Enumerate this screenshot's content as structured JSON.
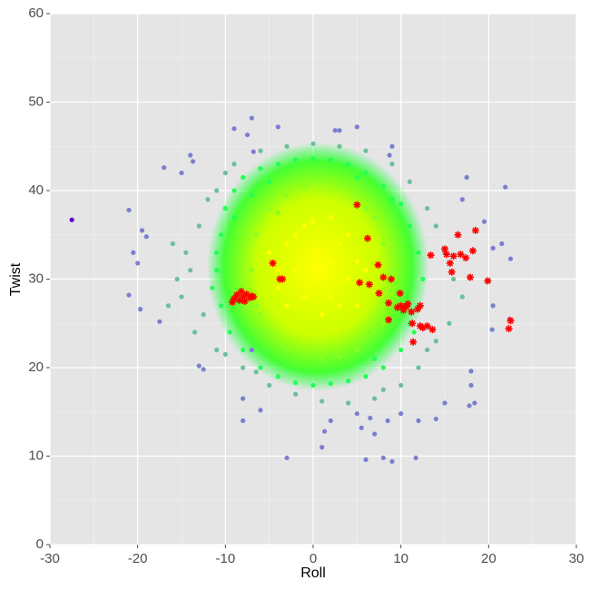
{
  "chart_data": {
    "type": "scatter",
    "x_label": "Roll",
    "y_label": "Twist",
    "xlim": [
      -30,
      30
    ],
    "xticks": [
      -30,
      -20,
      -10,
      0,
      10,
      20,
      30
    ],
    "ylim": [
      0,
      60
    ],
    "yticks": [
      0,
      10,
      20,
      30,
      40,
      50,
      60
    ],
    "grid": true,
    "series": [
      {
        "color": "#7b7fd0",
        "marker": "circle",
        "x": [
          -21,
          -20.5,
          -20,
          -19.5,
          -19,
          -21,
          -19.7,
          -17.5,
          -17,
          -15,
          -14,
          -13.7,
          -13,
          -12.5,
          -8,
          -8,
          -7,
          -6,
          -4,
          -3,
          -7.5,
          -9,
          -7,
          -6.8,
          3,
          2.5,
          5,
          9,
          8.7,
          2,
          5,
          6.5,
          7,
          1,
          1.3,
          5.5,
          6,
          8,
          9,
          11.7,
          8.5,
          10,
          12,
          14,
          15,
          18,
          17.8,
          18.4,
          18,
          21.9,
          22.5,
          20.5,
          21.5,
          20.5,
          20.4,
          22.4,
          17.5,
          17,
          19.5
        ],
        "values": [
          37.8,
          33,
          31.8,
          35.5,
          34.8,
          28.2,
          26.6,
          25.2,
          42.6,
          42,
          44,
          43.3,
          20.2,
          19.8,
          16.5,
          14,
          22,
          15.2,
          47.2,
          9.8,
          46.3,
          47,
          48.2,
          44.4,
          46.8,
          46.8,
          47.2,
          45,
          44,
          14,
          14.8,
          14.3,
          12.5,
          11,
          12.8,
          13.2,
          9.6,
          9.8,
          9.4,
          9.8,
          14,
          14.8,
          14,
          14.2,
          16,
          18,
          15.7,
          16,
          19.6,
          40.4,
          32.3,
          33.5,
          34,
          27,
          24.3,
          25.5,
          41.5,
          39,
          36.5
        ]
      },
      {
        "color": "#5a00c8",
        "marker": "circle",
        "x": [
          -27.5
        ],
        "values": [
          36.7
        ]
      },
      {
        "color": "#6dbf9a",
        "marker": "circle",
        "x": [
          -14,
          -13,
          -12,
          -15,
          -14.5,
          -13.5,
          -11,
          -10,
          -9,
          -6,
          -3,
          0,
          3,
          6,
          9,
          11,
          13,
          14,
          15,
          16,
          17,
          15.5,
          14,
          12,
          10,
          7,
          4,
          1,
          -2,
          -5,
          -8,
          -11,
          -12.5,
          -15.5,
          -16,
          -16.5,
          -10,
          -6.5,
          8,
          13
        ],
        "values": [
          31,
          36,
          39,
          28,
          33,
          24,
          40,
          42,
          43,
          44.5,
          45,
          45.3,
          45,
          44.5,
          43,
          41,
          38,
          36,
          33,
          30,
          28,
          25,
          23,
          20,
          18,
          16.5,
          16,
          16.2,
          17,
          18,
          20,
          22,
          26,
          30,
          34,
          27,
          21.5,
          19.5,
          17.5,
          22
        ]
      },
      {
        "color": "#22ff55",
        "marker": "circle",
        "x": [
          -11,
          -10.5,
          -10,
          -9,
          -8,
          -6,
          -4,
          -2,
          0,
          2,
          4,
          6,
          8,
          10,
          11,
          12,
          12.5,
          12,
          11.5,
          10,
          8,
          6,
          4,
          2,
          0,
          -2,
          -4,
          -6,
          -8,
          -9.5,
          -10.5,
          -11.5,
          -11,
          -7,
          -5,
          5,
          9,
          11,
          -9,
          7
        ],
        "values": [
          31,
          35,
          38,
          40,
          41.5,
          42.5,
          43,
          43.5,
          43.6,
          43.5,
          43,
          42,
          40.5,
          38.5,
          36,
          33,
          30,
          27,
          24,
          22,
          20,
          19,
          18.5,
          18.2,
          18,
          18.3,
          19,
          20,
          22,
          24,
          27,
          29,
          33,
          39.5,
          41,
          41.5,
          39,
          25,
          37,
          21
        ]
      },
      {
        "color": "#88ff22",
        "marker": "circle",
        "x": [
          -7,
          -6.5,
          -5,
          -3,
          -1,
          1,
          3,
          5,
          7,
          8,
          9,
          8.5,
          7,
          5,
          3,
          1,
          -1,
          -3,
          -5,
          -6.5,
          -4,
          6,
          -6,
          8
        ],
        "values": [
          31,
          35,
          38,
          39.5,
          40.5,
          41,
          40.5,
          39.5,
          37,
          34,
          31,
          27,
          24,
          22,
          21.2,
          21,
          21.3,
          22,
          24,
          27,
          37.5,
          38,
          26,
          25
        ]
      },
      {
        "color": "#ffff00",
        "marker": "circle",
        "x": [
          -4,
          -3,
          -2,
          -1,
          0,
          1,
          2,
          3,
          4,
          5,
          -3,
          -1,
          1,
          3,
          4,
          -2,
          0,
          2,
          5,
          -4,
          6,
          -5,
          0,
          2
        ],
        "values": [
          31,
          34,
          35,
          36,
          33,
          31,
          28,
          34,
          30,
          32,
          27,
          28,
          26,
          27,
          35,
          31,
          36.5,
          37,
          27,
          29,
          31,
          33,
          30,
          32
        ]
      },
      {
        "color": "#ff0000",
        "marker": "star",
        "x": [
          -9,
          -8.7,
          -8.4,
          -8,
          -7.6,
          -7.2,
          -7,
          -8.2,
          -7.8,
          -6.8,
          -9.2,
          -4.6,
          -3.8,
          -3.5,
          5,
          6.2,
          5.3,
          6.4,
          7.4,
          7.5,
          8,
          8.6,
          8.6,
          8.9,
          9.6,
          10,
          9.9,
          10.3,
          10.6,
          10.8,
          11.2,
          11.3,
          11.4,
          11.9,
          12.2,
          12.2,
          12.5,
          13,
          13.4,
          13.6,
          15,
          15.2,
          15.6,
          15.8,
          16,
          16.5,
          16.8,
          17.4,
          18.2,
          18.5,
          17.9,
          19.9,
          22.3,
          22.5
        ],
        "values": [
          27.8,
          28.2,
          27.6,
          28,
          28.3,
          27.9,
          28.1,
          28.6,
          27.5,
          28,
          27.4,
          31.8,
          30,
          30,
          38.4,
          34.6,
          29.6,
          29.4,
          31.6,
          28.4,
          30.2,
          27.3,
          25.4,
          30,
          26.8,
          27,
          28.4,
          26.5,
          26.9,
          27.2,
          26.3,
          25,
          22.9,
          26.6,
          27,
          24.7,
          24.5,
          24.7,
          32.7,
          24.3,
          33.4,
          32.8,
          31.8,
          30.8,
          32.6,
          35,
          32.8,
          32.4,
          33.2,
          35.5,
          30.2,
          29.8,
          24.4,
          25.3
        ]
      }
    ]
  }
}
